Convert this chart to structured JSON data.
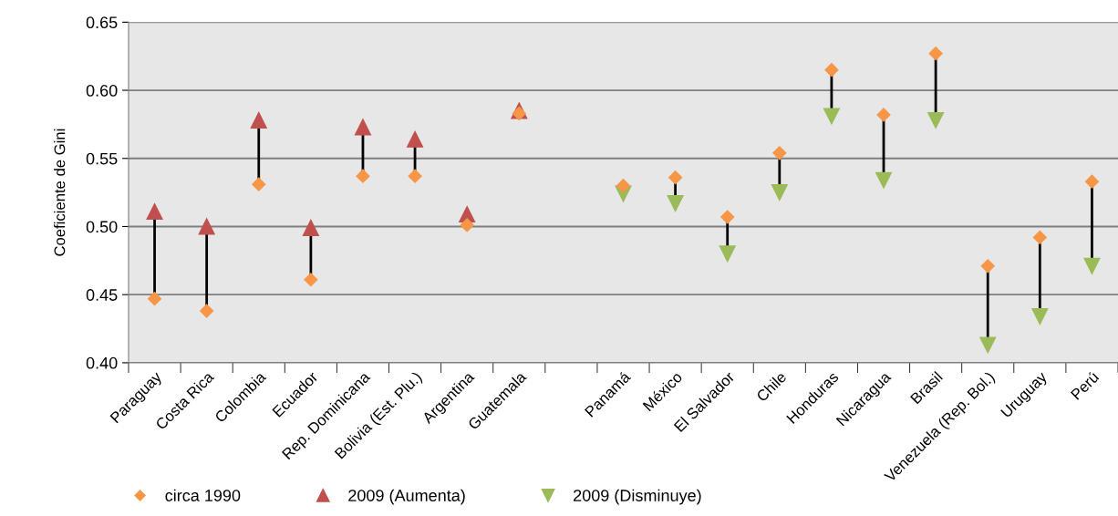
{
  "chart_data": {
    "type": "scatter",
    "ylabel": "Coeficiente de Gini",
    "categories": [
      "Paraguay",
      "Costa Rica",
      "Colombia",
      "Ecuador",
      "Rep. Dominicana",
      "Bolivia (Est. Plu.)",
      "Argentina",
      "Guatemala",
      null,
      "Panamá",
      "México",
      "El Salvador",
      "Chile",
      "Honduras",
      "Nicaragua",
      "Brasil",
      "Venezuela (Rep. Bol.)",
      "Uruguay",
      "Perú"
    ],
    "series": [
      {
        "name": "circa 1990",
        "color": "#f79646",
        "marker": "diamond",
        "values": [
          0.447,
          0.438,
          0.531,
          0.461,
          0.537,
          0.537,
          0.501,
          0.583,
          null,
          0.53,
          0.536,
          0.507,
          0.554,
          0.615,
          0.582,
          0.627,
          0.471,
          0.492,
          0.533
        ]
      },
      {
        "name": "2009 (Aumenta)",
        "color": "#c0504d",
        "marker": "triangle",
        "values": [
          0.511,
          0.5,
          0.578,
          0.499,
          0.573,
          0.564,
          0.509,
          0.585,
          null,
          null,
          null,
          null,
          null,
          null,
          null,
          null,
          null,
          null,
          null
        ]
      },
      {
        "name": "2009 (Disminuye)",
        "color": "#9bbb59",
        "marker": "triangle_down",
        "values": [
          null,
          null,
          null,
          null,
          null,
          null,
          null,
          null,
          null,
          0.524,
          0.517,
          0.48,
          0.525,
          0.581,
          0.534,
          0.578,
          0.413,
          0.434,
          0.471
        ]
      }
    ],
    "ylim": [
      0.4,
      0.65
    ],
    "yticks": [
      {
        "value": 0.4,
        "label": "0.40"
      },
      {
        "value": 0.45,
        "label": "0.45"
      },
      {
        "value": 0.5,
        "label": "0.50"
      },
      {
        "value": 0.55,
        "label": "0.55"
      },
      {
        "value": 0.6,
        "label": "0.60"
      },
      {
        "value": 0.65,
        "label": "0.65"
      }
    ],
    "grid": "y",
    "legend": "bottom left"
  }
}
